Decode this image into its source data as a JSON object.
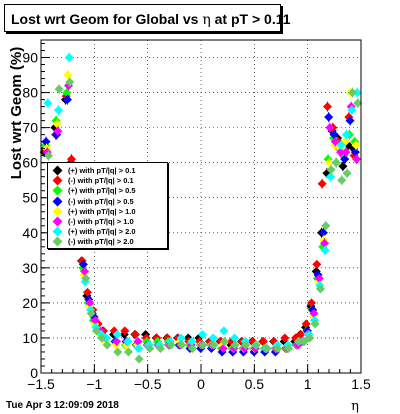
{
  "timestamp": "Tue Apr  3 12:09:09 2018",
  "chart_data": {
    "type": "scatter",
    "title": "Lost wrt Geom for Global vs",
    "title_symbol": "η",
    "title_suffix": "at pT > 0.11",
    "xlabel": "η",
    "ylabel": "Lost wrt Geom (%)",
    "xlim": [
      -1.5,
      1.5
    ],
    "ylim": [
      0,
      95
    ],
    "x_ticks": [
      -1.5,
      -1,
      -0.5,
      0,
      0.5,
      1,
      1.5
    ],
    "x_tick_labels": [
      "−1.5",
      "−1",
      "−0.5",
      "0",
      "0.5",
      "1",
      "1.5"
    ],
    "y_ticks": [
      0,
      10,
      20,
      30,
      40,
      50,
      60,
      70,
      80,
      90
    ],
    "y_tick_labels": [
      "0",
      "10",
      "20",
      "30",
      "40",
      "50",
      "60",
      "70",
      "80",
      "90"
    ],
    "grid": true,
    "legend_position": "middle-left",
    "series": [
      {
        "name": "(+) with pT/|q| > 0.1",
        "color": "#000000",
        "x": [
          -1.45,
          -1.35,
          -1.25,
          -1.2,
          -1.15,
          -1.1,
          -1.05,
          -1.0,
          -0.95,
          -0.9,
          -0.8,
          -0.7,
          -0.6,
          -0.5,
          -0.4,
          -0.3,
          -0.2,
          -0.1,
          0.0,
          0.1,
          0.2,
          0.3,
          0.4,
          0.5,
          0.6,
          0.7,
          0.8,
          0.9,
          0.95,
          1.0,
          1.05,
          1.1,
          1.15,
          1.2,
          1.25,
          1.3,
          1.35,
          1.4,
          1.45
        ],
        "y": [
          63,
          70,
          78,
          60,
          44,
          32,
          22,
          17,
          14,
          12,
          11,
          11,
          11,
          11,
          10,
          10,
          10,
          10,
          10,
          9,
          9,
          8,
          9,
          9,
          9,
          9,
          9,
          9,
          11,
          13,
          19,
          29,
          40,
          57,
          69,
          67,
          59,
          65,
          64
        ]
      },
      {
        "name": "(-) with pT/|q| > 0.1",
        "color": "#ff0000",
        "x": [
          -1.45,
          -1.35,
          -1.25,
          -1.2,
          -1.15,
          -1.1,
          -1.05,
          -1.0,
          -0.95,
          -0.9,
          -0.8,
          -0.7,
          -0.6,
          -0.5,
          -0.4,
          -0.3,
          -0.2,
          -0.1,
          0.0,
          0.1,
          0.2,
          0.3,
          0.4,
          0.5,
          0.6,
          0.7,
          0.8,
          0.9,
          0.95,
          1.0,
          1.05,
          1.1,
          1.15,
          1.2,
          1.25,
          1.3,
          1.35,
          1.4,
          1.45
        ],
        "y": [
          64,
          68,
          79,
          61,
          45,
          32,
          23,
          18,
          14,
          12,
          12,
          12,
          11,
          10,
          10,
          10,
          10,
          9,
          9,
          9,
          9,
          9,
          9,
          9,
          9,
          9,
          10,
          10,
          11,
          14,
          20,
          31,
          54,
          76,
          70,
          66,
          62,
          73,
          62
        ]
      },
      {
        "name": "(+) with pT/|q| > 0.5",
        "color": "#00ff00",
        "x": [
          -1.45,
          -1.35,
          -1.25,
          -1.2,
          -1.15,
          -1.1,
          -1.05,
          -1.0,
          -0.95,
          -0.9,
          -0.8,
          -0.7,
          -0.6,
          -0.5,
          -0.4,
          -0.3,
          -0.2,
          -0.1,
          0.0,
          0.1,
          0.2,
          0.3,
          0.4,
          0.5,
          0.6,
          0.7,
          0.8,
          0.9,
          0.95,
          1.0,
          1.05,
          1.1,
          1.15,
          1.2,
          1.25,
          1.3,
          1.35,
          1.4,
          1.45
        ],
        "y": [
          65,
          72,
          80,
          58,
          42,
          30,
          20,
          15,
          12,
          10,
          9,
          8,
          8,
          9,
          9,
          9,
          8,
          8,
          8,
          8,
          7,
          7,
          7,
          7,
          7,
          7,
          7,
          8,
          9,
          12,
          18,
          27,
          36,
          61,
          67,
          65,
          62,
          68,
          66
        ]
      },
      {
        "name": "(-) with pT/|q| > 0.5",
        "color": "#0000ff",
        "x": [
          -1.45,
          -1.35,
          -1.25,
          -1.2,
          -1.15,
          -1.1,
          -1.05,
          -1.0,
          -0.95,
          -0.9,
          -0.8,
          -0.7,
          -0.6,
          -0.5,
          -0.4,
          -0.3,
          -0.2,
          -0.1,
          0.0,
          0.1,
          0.2,
          0.3,
          0.4,
          0.5,
          0.6,
          0.7,
          0.8,
          0.9,
          0.95,
          1.0,
          1.05,
          1.1,
          1.15,
          1.2,
          1.25,
          1.3,
          1.35,
          1.4,
          1.45
        ],
        "y": [
          66,
          68,
          78,
          59,
          43,
          31,
          21,
          16,
          12,
          10,
          9,
          9,
          8,
          8,
          8,
          8,
          8,
          7,
          7,
          7,
          6,
          6,
          6,
          6,
          6,
          6,
          7,
          8,
          9,
          12,
          18,
          28,
          40,
          73,
          68,
          64,
          61,
          72,
          63
        ]
      },
      {
        "name": "(+) with pT/|q| > 1.0",
        "color": "#ffff00",
        "x": [
          -1.45,
          -1.35,
          -1.25,
          -1.2,
          -1.15,
          -1.1,
          -1.05,
          -1.0,
          -0.95,
          -0.9,
          -0.8,
          -0.7,
          -0.6,
          -0.5,
          -0.4,
          -0.3,
          -0.2,
          -0.1,
          0.0,
          0.1,
          0.2,
          0.3,
          0.4,
          0.5,
          0.6,
          0.7,
          0.8,
          0.9,
          0.95,
          1.0,
          1.05,
          1.1,
          1.15,
          1.2,
          1.25,
          1.3,
          1.35,
          1.4,
          1.45
        ],
        "y": [
          64,
          71,
          85,
          57,
          40,
          28,
          19,
          14,
          11,
          9,
          8,
          8,
          8,
          8,
          8,
          8,
          9,
          8,
          8,
          8,
          8,
          7,
          7,
          7,
          7,
          7,
          7,
          8,
          9,
          11,
          16,
          26,
          38,
          60,
          65,
          64,
          66,
          80,
          65
        ]
      },
      {
        "name": "(-) with pT/|q| > 1.0",
        "color": "#ff00ff",
        "x": [
          -1.45,
          -1.35,
          -1.25,
          -1.2,
          -1.15,
          -1.1,
          -1.05,
          -1.0,
          -0.95,
          -0.9,
          -0.8,
          -0.7,
          -0.6,
          -0.5,
          -0.4,
          -0.3,
          -0.2,
          -0.1,
          0.0,
          0.1,
          0.2,
          0.3,
          0.4,
          0.5,
          0.6,
          0.7,
          0.8,
          0.9,
          0.95,
          1.0,
          1.05,
          1.1,
          1.15,
          1.2,
          1.25,
          1.3,
          1.35,
          1.4,
          1.45
        ],
        "y": [
          63,
          69,
          82,
          58,
          41,
          29,
          20,
          15,
          12,
          10,
          9,
          9,
          9,
          8,
          8,
          8,
          8,
          8,
          8,
          8,
          7,
          7,
          7,
          7,
          7,
          7,
          7,
          8,
          9,
          11,
          17,
          27,
          37,
          70,
          66,
          63,
          63,
          76,
          61
        ]
      },
      {
        "name": "(+) with pT/|q| > 2.0",
        "color": "#00ffff",
        "x": [
          -1.45,
          -1.35,
          -1.25,
          -1.2,
          -1.15,
          -1.1,
          -1.05,
          -1.0,
          -0.95,
          -0.9,
          -0.8,
          -0.7,
          -0.6,
          -0.5,
          -0.4,
          -0.3,
          -0.2,
          -0.1,
          0.0,
          0.1,
          0.2,
          0.3,
          0.4,
          0.5,
          0.6,
          0.7,
          0.8,
          0.9,
          0.95,
          1.0,
          1.05,
          1.1,
          1.15,
          1.2,
          1.25,
          1.3,
          1.35,
          1.4,
          1.45
        ],
        "y": [
          77,
          75,
          90,
          56,
          38,
          26,
          18,
          13,
          11,
          10,
          11,
          9,
          7,
          8,
          8,
          9,
          10,
          9,
          11,
          10,
          12,
          10,
          9,
          8,
          7,
          8,
          8,
          9,
          9,
          11,
          15,
          25,
          35,
          56,
          60,
          65,
          68,
          75,
          80
        ]
      },
      {
        "name": "(-) with pT/|q| > 2.0",
        "color": "#66cc66",
        "x": [
          -1.45,
          -1.35,
          -1.25,
          -1.2,
          -1.15,
          -1.1,
          -1.05,
          -1.0,
          -0.95,
          -0.9,
          -0.8,
          -0.7,
          -0.6,
          -0.5,
          -0.4,
          -0.3,
          -0.2,
          -0.1,
          0.0,
          0.1,
          0.2,
          0.3,
          0.4,
          0.5,
          0.6,
          0.7,
          0.8,
          0.9,
          0.95,
          1.0,
          1.05,
          1.1,
          1.15,
          1.2,
          1.25,
          1.3,
          1.35,
          1.4,
          1.45
        ],
        "y": [
          62,
          81,
          83,
          55,
          39,
          27,
          17,
          12,
          10,
          8,
          6,
          6,
          4,
          7,
          7,
          8,
          8,
          7,
          8,
          8,
          9,
          8,
          8,
          8,
          7,
          7,
          7,
          9,
          9,
          10,
          14,
          24,
          42,
          58,
          60,
          55,
          57,
          80,
          77
        ]
      }
    ]
  }
}
